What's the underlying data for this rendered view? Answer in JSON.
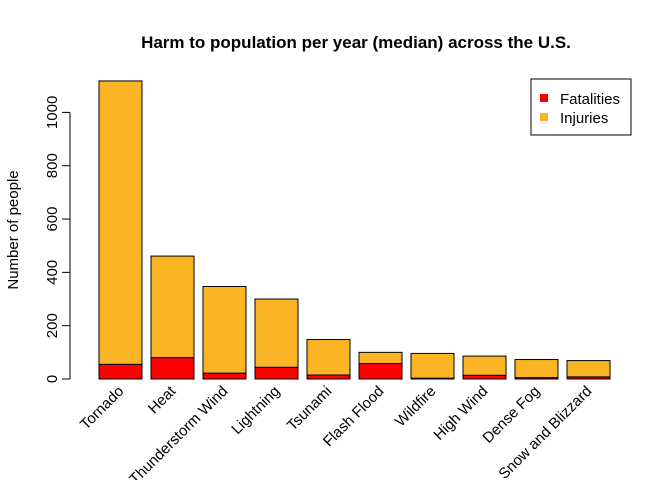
{
  "chart_data": {
    "type": "bar",
    "stacked": true,
    "title": "Harm to population per year (median) across the U.S.",
    "xlabel": "",
    "ylabel": "Number of people",
    "ylim": [
      0,
      1120
    ],
    "yticks": [
      0,
      200,
      400,
      600,
      800,
      1000
    ],
    "categories": [
      "Tornado",
      "Heat",
      "Thunderstorm Wind",
      "Lightning",
      "Tsunami",
      "Flash Flood",
      "Wildfire",
      "High Wind",
      "Dense Fog",
      "Snow and Blizzard"
    ],
    "series": [
      {
        "name": "Fatalities",
        "color": "#ff0000",
        "values": [
          55,
          80,
          22,
          44,
          15,
          58,
          3,
          14,
          5,
          8
        ]
      },
      {
        "name": "Injuries",
        "color": "#fbb524",
        "values": [
          1063,
          381,
          325,
          256,
          133,
          42,
          93,
          72,
          68,
          61
        ]
      }
    ],
    "legend": {
      "position": "top-right",
      "entries": [
        "Fatalities",
        "Injuries"
      ]
    },
    "grid": false
  }
}
